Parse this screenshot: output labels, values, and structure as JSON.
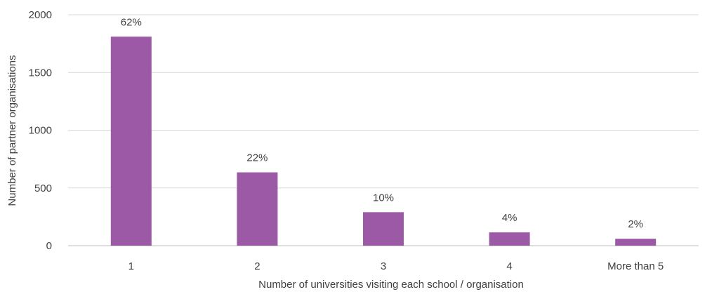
{
  "chart_data": {
    "type": "bar",
    "categories": [
      "1",
      "2",
      "3",
      "4",
      "More than 5"
    ],
    "values": [
      1810,
      635,
      290,
      115,
      60
    ],
    "data_labels": [
      "62%",
      "22%",
      "10%",
      "4%",
      "2%"
    ],
    "title": "",
    "xlabel": "Number of universities visiting each school / organisation",
    "ylabel": "Number of partner organisations",
    "ylim": [
      0,
      2000
    ],
    "yticks": [
      0,
      500,
      1000,
      1500,
      2000
    ],
    "grid": true,
    "legend": "none",
    "bar_color": "#9b59a6",
    "grid_color": "#d9d9d9",
    "text_color": "#404040"
  }
}
